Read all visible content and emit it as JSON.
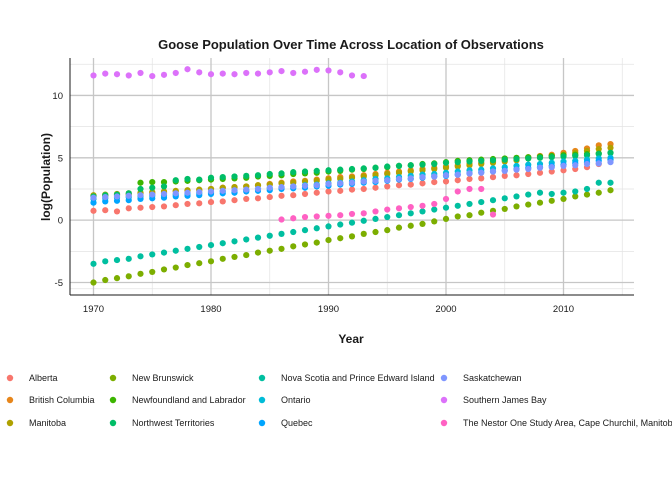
{
  "chart_data": {
    "type": "scatter",
    "title": "Goose Population Over Time Across Location of Observations",
    "xlabel": "Year",
    "ylabel": "log(Population)",
    "xlim": [
      1968,
      2016
    ],
    "ylim": [
      -6,
      13
    ],
    "x_ticks": [
      1970,
      1980,
      1990,
      2000,
      2010
    ],
    "y_ticks": [
      -5,
      0,
      5,
      10
    ],
    "grid": true,
    "legend_position": "bottom",
    "series": [
      {
        "name": "Alberta",
        "color": "#F8766D",
        "x": [
          1970,
          1971,
          1972,
          1973,
          1974,
          1975,
          1976,
          1977,
          1978,
          1979,
          1980,
          1981,
          1982,
          1983,
          1984,
          1985,
          1986,
          1987,
          1988,
          1989,
          1990,
          1991,
          1992,
          1993,
          1994,
          1995,
          1996,
          1997,
          1998,
          1999,
          2000,
          2001,
          2002,
          2003,
          2004,
          2005,
          2006,
          2007,
          2008,
          2009,
          2010,
          2011,
          2012,
          2013,
          2014
        ],
        "y": [
          0.75,
          0.8,
          0.7,
          0.95,
          1.0,
          1.05,
          1.1,
          1.2,
          1.3,
          1.35,
          1.45,
          1.5,
          1.6,
          1.7,
          1.75,
          1.85,
          1.95,
          2.0,
          2.1,
          2.2,
          2.3,
          2.35,
          2.45,
          2.5,
          2.6,
          2.7,
          2.8,
          2.85,
          2.95,
          3.05,
          3.1,
          3.2,
          3.3,
          3.35,
          3.45,
          3.55,
          3.6,
          3.7,
          3.8,
          3.9,
          4.0,
          4.1,
          4.25,
          4.5,
          4.85
        ]
      },
      {
        "name": "British Columbia",
        "color": "#E7861B",
        "x": [
          1970,
          1971,
          1972,
          1973,
          1974,
          1975,
          1976,
          1977,
          1978,
          1979,
          1980,
          1981,
          1982,
          1983,
          1984,
          1985,
          1986,
          1987,
          1988,
          1989,
          1990,
          1991,
          1992,
          1993,
          1994,
          1995,
          1996,
          1997,
          1998,
          1999,
          2000,
          2001,
          2002,
          2003,
          2004,
          2005,
          2006,
          2007,
          2008,
          2009,
          2010,
          2011,
          2012,
          2013,
          2014
        ],
        "y": [
          1.9,
          1.95,
          2.0,
          2.05,
          2.1,
          2.15,
          2.2,
          2.3,
          2.35,
          2.4,
          2.5,
          2.6,
          2.65,
          2.7,
          2.8,
          2.9,
          3.0,
          3.1,
          3.15,
          3.25,
          3.35,
          3.45,
          3.5,
          3.6,
          3.7,
          3.8,
          3.9,
          4.0,
          4.1,
          4.2,
          4.3,
          4.4,
          4.5,
          4.6,
          4.7,
          4.85,
          4.95,
          5.05,
          5.15,
          5.25,
          5.4,
          5.55,
          5.75,
          6.0,
          6.1
        ]
      },
      {
        "name": "Manitoba",
        "color": "#AFA100",
        "x": [
          1970,
          1971,
          1972,
          1973,
          1974,
          1975,
          1976,
          1977,
          1978,
          1979,
          1980,
          1981,
          1982,
          1983,
          1984,
          1985,
          1986,
          1987,
          1988,
          1989,
          1990,
          1991,
          1992,
          1993,
          1994,
          1995,
          1996,
          1997,
          1998,
          1999,
          2000,
          2001,
          2002,
          2003,
          2004,
          2005,
          2006,
          2007,
          2008,
          2009,
          2010,
          2011,
          2012,
          2013,
          2014
        ],
        "y": [
          2.0,
          2.05,
          2.1,
          2.15,
          2.2,
          2.25,
          2.3,
          2.35,
          2.4,
          2.45,
          2.5,
          2.6,
          2.65,
          2.7,
          2.8,
          2.85,
          2.95,
          3.0,
          3.1,
          3.15,
          3.25,
          3.3,
          3.4,
          3.5,
          3.6,
          3.7,
          3.8,
          3.9,
          4.0,
          4.1,
          4.2,
          4.3,
          4.4,
          4.5,
          4.6,
          4.7,
          4.8,
          4.95,
          5.05,
          5.15,
          5.25,
          5.4,
          5.55,
          5.7,
          5.8
        ]
      },
      {
        "name": "New Brunswick",
        "color": "#7CAE00",
        "x": [
          1970,
          1971,
          1972,
          1973,
          1974,
          1975,
          1976,
          1977,
          1978,
          1979,
          1980,
          1981,
          1982,
          1983,
          1984,
          1985,
          1986,
          1987,
          1988,
          1989,
          1990,
          1991,
          1992,
          1993,
          1994,
          1995,
          1996,
          1997,
          1998,
          1999,
          2000,
          2001,
          2002,
          2003,
          2004,
          2005,
          2006,
          2007,
          2008,
          2009,
          2010,
          2011,
          2012,
          2013,
          2014
        ],
        "y": [
          -5.0,
          -4.8,
          -4.65,
          -4.5,
          -4.3,
          -4.15,
          -3.95,
          -3.8,
          -3.6,
          -3.45,
          -3.3,
          -3.1,
          -2.95,
          -2.8,
          -2.6,
          -2.45,
          -2.3,
          -2.1,
          -1.95,
          -1.8,
          -1.6,
          -1.45,
          -1.3,
          -1.1,
          -0.95,
          -0.8,
          -0.6,
          -0.45,
          -0.3,
          -0.1,
          0.1,
          0.3,
          0.4,
          0.6,
          0.75,
          0.9,
          1.1,
          1.25,
          1.4,
          1.55,
          1.7,
          1.9,
          2.05,
          2.2,
          2.4
        ]
      },
      {
        "name": "Newfoundland and Labrador",
        "color": "#3CB500",
        "x": [
          1974,
          1975,
          1976,
          1977,
          1978,
          1979,
          1980,
          1981,
          1982,
          1983,
          1984,
          1985,
          1986,
          1987,
          1988,
          1989,
          1990,
          1991,
          1992,
          1993,
          1994,
          1995,
          1996,
          1997,
          1998,
          1999,
          2000,
          2001,
          2002,
          2003,
          2004,
          2005,
          2006,
          2007,
          2008,
          2009,
          2010,
          2011,
          2012,
          2013,
          2014
        ],
        "y": [
          3.0,
          3.05,
          3.05,
          3.1,
          3.15,
          3.2,
          3.25,
          3.3,
          3.35,
          3.4,
          3.5,
          3.55,
          3.6,
          3.7,
          3.75,
          3.8,
          3.9,
          3.95,
          4.05,
          4.1,
          4.2,
          4.25,
          4.35,
          4.4,
          4.5,
          4.55,
          4.65,
          4.75,
          4.8,
          4.85,
          4.9,
          4.95,
          5.0,
          5.05,
          5.1,
          5.15,
          5.2,
          5.25,
          5.3,
          5.35,
          5.4
        ]
      },
      {
        "name": "Northwest Territories",
        "color": "#00BE67",
        "x": [
          1970,
          1971,
          1972,
          1973,
          1974,
          1975,
          1976,
          1977,
          1978,
          1979,
          1980,
          1981,
          1982,
          1983,
          1984,
          1985,
          1986,
          1987,
          1988,
          1989,
          1990,
          1991,
          1992,
          1993,
          1994,
          1995,
          1996,
          1997,
          1998,
          1999,
          2000,
          2001,
          2002,
          2003,
          2004,
          2005,
          2006,
          2007,
          2008,
          2009,
          2010,
          2011,
          2012,
          2013,
          2014
        ],
        "y": [
          1.9,
          2.0,
          2.05,
          2.15,
          2.5,
          2.6,
          2.7,
          3.2,
          3.3,
          3.25,
          3.4,
          3.45,
          3.5,
          3.55,
          3.6,
          3.7,
          3.75,
          3.85,
          3.9,
          3.95,
          4.0,
          4.05,
          4.1,
          4.15,
          4.2,
          4.3,
          4.35,
          4.4,
          4.45,
          4.5,
          4.6,
          4.65,
          4.7,
          4.75,
          4.8,
          4.85,
          4.9,
          4.95,
          5.0,
          5.05,
          5.1,
          5.15,
          5.2,
          5.3,
          5.4
        ]
      },
      {
        "name": "Nova Scotia and Prince Edward Island",
        "color": "#00BFA0",
        "x": [
          1970,
          1971,
          1972,
          1973,
          1974,
          1975,
          1976,
          1977,
          1978,
          1979,
          1980,
          1981,
          1982,
          1983,
          1984,
          1985,
          1986,
          1987,
          1988,
          1989,
          1990,
          1991,
          1992,
          1993,
          1994,
          1995,
          1996,
          1997,
          1998,
          1999,
          2000,
          2001,
          2002,
          2003,
          2004,
          2005,
          2006,
          2007,
          2008,
          2009,
          2010,
          2011,
          2012,
          2013,
          2014
        ],
        "y": [
          -3.5,
          -3.3,
          -3.2,
          -3.1,
          -2.9,
          -2.75,
          -2.6,
          -2.45,
          -2.3,
          -2.15,
          -2.0,
          -1.85,
          -1.7,
          -1.55,
          -1.4,
          -1.25,
          -1.1,
          -0.95,
          -0.8,
          -0.65,
          -0.5,
          -0.35,
          -0.2,
          -0.05,
          0.1,
          0.25,
          0.4,
          0.55,
          0.7,
          0.85,
          1.0,
          1.15,
          1.3,
          1.45,
          1.6,
          1.75,
          1.9,
          2.05,
          2.2,
          2.1,
          2.2,
          2.3,
          2.5,
          3.0,
          3.0
        ]
      },
      {
        "name": "Ontario",
        "color": "#00BCD8",
        "x": [
          1970,
          1971,
          1972,
          1973,
          1974,
          1975,
          1976,
          1977,
          1978,
          1979,
          1980,
          1981,
          1982,
          1983,
          1984,
          1985,
          1986,
          1987,
          1988,
          1989,
          1990,
          1991,
          1992,
          1993,
          1994,
          1995,
          1996,
          1997,
          1998,
          1999,
          2000,
          2001,
          2002,
          2003,
          2004,
          2005,
          2006,
          2007,
          2008,
          2009,
          2010,
          2011,
          2012,
          2013,
          2014
        ],
        "y": [
          1.7,
          1.75,
          1.8,
          1.85,
          1.9,
          1.95,
          2.0,
          2.05,
          2.1,
          2.15,
          2.2,
          2.3,
          2.35,
          2.4,
          2.5,
          2.55,
          2.6,
          2.7,
          2.8,
          2.85,
          2.95,
          3.0,
          3.1,
          3.2,
          3.3,
          3.35,
          3.45,
          3.55,
          3.65,
          3.7,
          3.8,
          3.9,
          4.0,
          4.05,
          4.15,
          4.25,
          4.35,
          4.45,
          4.5,
          4.6,
          4.7,
          4.75,
          4.85,
          4.95,
          5.0
        ]
      },
      {
        "name": "Quebec",
        "color": "#00A5FF",
        "x": [
          1970,
          1971,
          1972,
          1973,
          1974,
          1975,
          1976,
          1977,
          1978,
          1979,
          1980,
          1981,
          1982,
          1983,
          1984,
          1985,
          1986,
          1987,
          1988,
          1989,
          1990,
          1991,
          1992,
          1993,
          1994,
          1995,
          1996,
          1997,
          1998,
          1999,
          2000,
          2001,
          2002,
          2003,
          2004,
          2005,
          2006,
          2007,
          2008,
          2009,
          2010,
          2011,
          2012,
          2013,
          2014
        ],
        "y": [
          1.4,
          1.5,
          1.55,
          1.6,
          1.7,
          1.75,
          1.8,
          1.9,
          1.95,
          2.0,
          2.1,
          2.15,
          2.2,
          2.3,
          2.35,
          2.4,
          2.5,
          2.55,
          2.6,
          2.7,
          2.75,
          2.85,
          2.9,
          3.0,
          3.05,
          3.15,
          3.25,
          3.3,
          3.4,
          3.5,
          3.55,
          3.65,
          3.75,
          3.85,
          3.9,
          4.0,
          4.1,
          4.2,
          4.25,
          4.35,
          4.45,
          4.55,
          4.65,
          4.75,
          4.85
        ]
      },
      {
        "name": "Saskatchewan",
        "color": "#7F96FF",
        "x": [
          1970,
          1971,
          1972,
          1973,
          1974,
          1975,
          1976,
          1977,
          1978,
          1979,
          1980,
          1981,
          1982,
          1983,
          1984,
          1985,
          1986,
          1987,
          1988,
          1989,
          1990,
          1991,
          1992,
          1993,
          1994,
          1995,
          1996,
          1997,
          1998,
          1999,
          2000,
          2001,
          2002,
          2003,
          2004,
          2005,
          2006,
          2007,
          2008,
          2009,
          2010,
          2011,
          2012,
          2013,
          2014
        ],
        "y": [
          1.8,
          1.85,
          1.9,
          1.95,
          2.0,
          2.05,
          2.1,
          2.15,
          2.2,
          2.25,
          2.3,
          2.35,
          2.4,
          2.45,
          2.5,
          2.6,
          2.65,
          2.7,
          2.75,
          2.8,
          2.9,
          2.95,
          3.0,
          3.1,
          3.15,
          3.2,
          3.3,
          3.35,
          3.45,
          3.5,
          3.6,
          3.65,
          3.75,
          3.8,
          3.9,
          3.95,
          4.05,
          4.1,
          4.2,
          4.25,
          4.35,
          4.4,
          4.5,
          4.55,
          4.65
        ]
      },
      {
        "name": "Southern James Bay",
        "color": "#DC71FA",
        "x": [
          1970,
          1971,
          1972,
          1973,
          1974,
          1975,
          1976,
          1977,
          1978,
          1979,
          1980,
          1981,
          1982,
          1983,
          1984,
          1985,
          1986,
          1987,
          1988,
          1989,
          1990,
          1991,
          1992,
          1993
        ],
        "y": [
          11.6,
          11.75,
          11.7,
          11.6,
          11.8,
          11.55,
          11.65,
          11.8,
          12.1,
          11.85,
          11.7,
          11.75,
          11.7,
          11.8,
          11.75,
          11.85,
          11.95,
          11.8,
          11.9,
          12.05,
          12.0,
          11.85,
          11.6,
          11.55
        ]
      },
      {
        "name": "The Nestor One Study Area, Cape Churchil, Manitoba",
        "color": "#FF61C3",
        "x": [
          1986,
          1987,
          1988,
          1989,
          1990,
          1991,
          1992,
          1993,
          1994,
          1995,
          1996,
          1997,
          1998,
          1999,
          2000,
          2001,
          2002,
          2003,
          2004
        ],
        "y": [
          0.05,
          0.15,
          0.25,
          0.3,
          0.35,
          0.4,
          0.5,
          0.55,
          0.7,
          0.85,
          0.95,
          1.05,
          1.15,
          1.3,
          1.7,
          2.3,
          2.5,
          2.5,
          0.45
        ]
      }
    ]
  }
}
